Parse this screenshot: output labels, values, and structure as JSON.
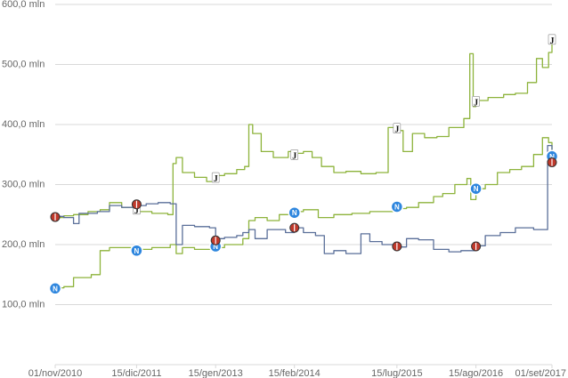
{
  "colors": {
    "background": "#ffffff",
    "grid": "#d9d9d9",
    "axis_text": "#666666",
    "green_series": "#8db33b",
    "blue_series": "#5a6f99",
    "napoli_badge": "#2e86de",
    "milan_badge": "#c0392b",
    "juve_badge": "#111111"
  },
  "chart_data": {
    "type": "line",
    "title": "",
    "xlabel": "",
    "ylabel": "",
    "y_unit": "mln",
    "ylim": [
      0,
      600
    ],
    "xlim": [
      "2010-11-01",
      "2017-09-01"
    ],
    "grid": true,
    "legend": "none",
    "y_ticks": [
      {
        "value": 100,
        "label": "100,0 mln"
      },
      {
        "value": 200,
        "label": "200,0 mln"
      },
      {
        "value": 300,
        "label": "300,0 mln"
      },
      {
        "value": 400,
        "label": "400,0 mln"
      },
      {
        "value": 500,
        "label": "500,0 mln"
      },
      {
        "value": 600,
        "label": "600,0 mln"
      }
    ],
    "x_ticks": [
      {
        "value": "2010-11-01",
        "label": "01/nov/2010"
      },
      {
        "value": "2011-12-15",
        "label": "15/dic/2011"
      },
      {
        "value": "2013-01-15",
        "label": "15/gen/2013"
      },
      {
        "value": "2014-02-15",
        "label": "15/feb/2014"
      },
      {
        "value": "2015-07-15",
        "label": "15/lug/2015"
      },
      {
        "value": "2016-08-15",
        "label": "15/ago/2016"
      },
      {
        "value": "2017-09-01",
        "label": "01/set/2017"
      }
    ],
    "series": [
      {
        "id": "juventus",
        "color": "#8db33b",
        "badge": "J",
        "points": [
          [
            "2010-11-01",
            245
          ],
          [
            "2010-12-15",
            248
          ],
          [
            "2011-02-01",
            250
          ],
          [
            "2011-04-15",
            255
          ],
          [
            "2011-06-15",
            258
          ],
          [
            "2011-08-01",
            270
          ],
          [
            "2011-10-01",
            262
          ],
          [
            "2011-12-15",
            255
          ],
          [
            "2012-03-01",
            252
          ],
          [
            "2012-05-20",
            250
          ],
          [
            "2012-06-15",
            335
          ],
          [
            "2012-07-01",
            345
          ],
          [
            "2012-08-01",
            320
          ],
          [
            "2012-10-01",
            312
          ],
          [
            "2012-12-01",
            305
          ],
          [
            "2013-01-15",
            315
          ],
          [
            "2013-03-01",
            318
          ],
          [
            "2013-05-01",
            325
          ],
          [
            "2013-06-10",
            330
          ],
          [
            "2013-07-01",
            400
          ],
          [
            "2013-07-20",
            385
          ],
          [
            "2013-09-01",
            355
          ],
          [
            "2013-11-01",
            345
          ],
          [
            "2014-01-15",
            355
          ],
          [
            "2014-02-15",
            352
          ],
          [
            "2014-04-01",
            355
          ],
          [
            "2014-05-15",
            345
          ],
          [
            "2014-07-01",
            330
          ],
          [
            "2014-09-01",
            320
          ],
          [
            "2014-11-01",
            322
          ],
          [
            "2015-01-15",
            318
          ],
          [
            "2015-04-01",
            320
          ],
          [
            "2015-06-01",
            395
          ],
          [
            "2015-07-15",
            390
          ],
          [
            "2015-08-15",
            355
          ],
          [
            "2015-10-01",
            385
          ],
          [
            "2015-12-01",
            378
          ],
          [
            "2016-02-01",
            380
          ],
          [
            "2016-04-01",
            395
          ],
          [
            "2016-06-15",
            410
          ],
          [
            "2016-07-15",
            518
          ],
          [
            "2016-08-01",
            430
          ],
          [
            "2016-08-15",
            440
          ],
          [
            "2016-10-15",
            445
          ],
          [
            "2017-01-01",
            450
          ],
          [
            "2017-03-01",
            452
          ],
          [
            "2017-05-01",
            470
          ],
          [
            "2017-06-15",
            510
          ],
          [
            "2017-07-15",
            495
          ],
          [
            "2017-08-15",
            520
          ],
          [
            "2017-09-01",
            540
          ]
        ],
        "markers": [
          [
            "2011-12-15",
            258
          ],
          [
            "2013-01-15",
            311
          ],
          [
            "2014-02-15",
            349
          ],
          [
            "2015-07-15",
            393
          ],
          [
            "2016-08-15",
            438
          ],
          [
            "2017-09-01",
            541
          ]
        ]
      },
      {
        "id": "napoli",
        "color": "#8db33b",
        "badge": "N",
        "points": [
          [
            "2010-11-01",
            128
          ],
          [
            "2010-12-15",
            130
          ],
          [
            "2011-02-01",
            145
          ],
          [
            "2011-05-01",
            150
          ],
          [
            "2011-06-15",
            190
          ],
          [
            "2011-08-01",
            195
          ],
          [
            "2011-12-15",
            192
          ],
          [
            "2012-03-01",
            195
          ],
          [
            "2012-06-01",
            200
          ],
          [
            "2012-07-01",
            185
          ],
          [
            "2012-08-01",
            195
          ],
          [
            "2012-10-01",
            192
          ],
          [
            "2013-01-15",
            195
          ],
          [
            "2013-03-01",
            200
          ],
          [
            "2013-06-01",
            210
          ],
          [
            "2013-07-01",
            240
          ],
          [
            "2013-08-01",
            245
          ],
          [
            "2013-10-01",
            240
          ],
          [
            "2013-12-01",
            250
          ],
          [
            "2014-02-15",
            255
          ],
          [
            "2014-04-01",
            258
          ],
          [
            "2014-06-15",
            245
          ],
          [
            "2014-09-01",
            250
          ],
          [
            "2014-12-01",
            252
          ],
          [
            "2015-03-01",
            255
          ],
          [
            "2015-07-15",
            260
          ],
          [
            "2015-09-01",
            262
          ],
          [
            "2015-11-01",
            270
          ],
          [
            "2016-01-15",
            280
          ],
          [
            "2016-03-01",
            285
          ],
          [
            "2016-05-01",
            300
          ],
          [
            "2016-07-01",
            310
          ],
          [
            "2016-07-20",
            275
          ],
          [
            "2016-08-15",
            293
          ],
          [
            "2016-10-01",
            300
          ],
          [
            "2016-12-01",
            320
          ],
          [
            "2017-02-01",
            325
          ],
          [
            "2017-04-01",
            330
          ],
          [
            "2017-06-01",
            350
          ],
          [
            "2017-07-15",
            378
          ],
          [
            "2017-08-15",
            370
          ],
          [
            "2017-09-01",
            352
          ]
        ],
        "markers": [
          [
            "2010-11-01",
            127
          ],
          [
            "2011-12-15",
            190
          ],
          [
            "2013-01-15",
            197
          ],
          [
            "2014-02-15",
            253
          ],
          [
            "2015-07-15",
            263
          ],
          [
            "2016-08-15",
            293
          ],
          [
            "2017-09-01",
            347
          ]
        ]
      },
      {
        "id": "milan",
        "color": "#5a6f99",
        "badge": "M",
        "points": [
          [
            "2010-11-01",
            247
          ],
          [
            "2010-12-15",
            245
          ],
          [
            "2011-02-01",
            235
          ],
          [
            "2011-03-01",
            252
          ],
          [
            "2011-06-01",
            255
          ],
          [
            "2011-08-01",
            265
          ],
          [
            "2011-10-01",
            262
          ],
          [
            "2011-12-15",
            265
          ],
          [
            "2012-02-01",
            268
          ],
          [
            "2012-04-01",
            270
          ],
          [
            "2012-06-01",
            268
          ],
          [
            "2012-07-01",
            200
          ],
          [
            "2012-08-01",
            232
          ],
          [
            "2012-10-01",
            230
          ],
          [
            "2012-12-15",
            228
          ],
          [
            "2013-01-15",
            210
          ],
          [
            "2013-03-01",
            212
          ],
          [
            "2013-05-01",
            215
          ],
          [
            "2013-06-01",
            220
          ],
          [
            "2013-07-01",
            225
          ],
          [
            "2013-08-01",
            210
          ],
          [
            "2013-10-01",
            225
          ],
          [
            "2014-01-01",
            220
          ],
          [
            "2014-02-15",
            228
          ],
          [
            "2014-04-01",
            220
          ],
          [
            "2014-06-01",
            215
          ],
          [
            "2014-07-15",
            185
          ],
          [
            "2014-09-01",
            190
          ],
          [
            "2014-11-01",
            185
          ],
          [
            "2015-01-15",
            218
          ],
          [
            "2015-03-01",
            205
          ],
          [
            "2015-05-01",
            200
          ],
          [
            "2015-07-15",
            196
          ],
          [
            "2015-09-01",
            210
          ],
          [
            "2015-11-01",
            208
          ],
          [
            "2016-01-15",
            192
          ],
          [
            "2016-04-01",
            188
          ],
          [
            "2016-06-01",
            190
          ],
          [
            "2016-08-15",
            198
          ],
          [
            "2016-10-01",
            215
          ],
          [
            "2016-12-15",
            220
          ],
          [
            "2017-03-01",
            228
          ],
          [
            "2017-06-01",
            225
          ],
          [
            "2017-08-01",
            225
          ],
          [
            "2017-08-10",
            365
          ],
          [
            "2017-09-01",
            340
          ]
        ],
        "markers": [
          [
            "2010-11-01",
            246
          ],
          [
            "2011-12-15",
            267
          ],
          [
            "2013-01-15",
            207
          ],
          [
            "2014-02-15",
            228
          ],
          [
            "2015-07-15",
            197
          ],
          [
            "2016-08-15",
            197
          ],
          [
            "2017-09-01",
            337
          ]
        ]
      }
    ]
  }
}
